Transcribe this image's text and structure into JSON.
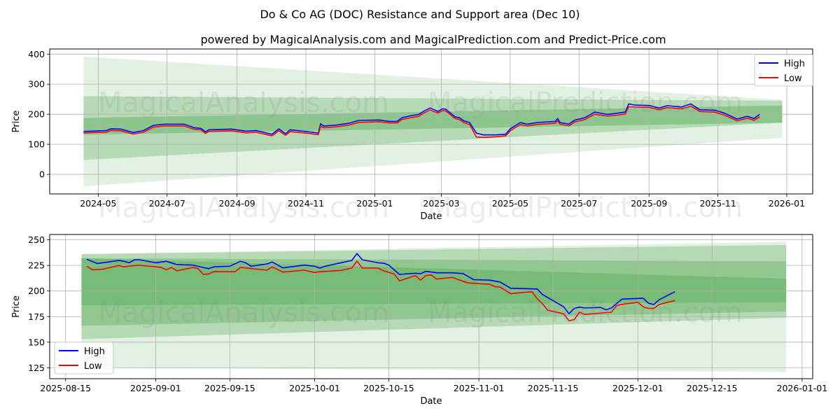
{
  "header": {
    "title": "Do & Co AG (DOC) Resistance and Support area (Dec 10)",
    "subtitle": "powered by MagicalAnalysis.com and MagicalPrediction.com and Predict-Price.com"
  },
  "watermarks": [
    "MagicalAnalysis.com",
    "MagicalPrediction.com"
  ],
  "colors": {
    "high": "#0000ff",
    "low": "#ff0000",
    "band": "#008000",
    "grid": "#b0b0b0"
  },
  "chart_data": [
    {
      "type": "line",
      "title": "",
      "xlabel": "Date",
      "ylabel": "Price",
      "xlim": [
        "2024-03-19",
        "2026-01-24"
      ],
      "ylim": [
        -65,
        417
      ],
      "grid": true,
      "legend": {
        "placement": "top-right",
        "entries": [
          "High",
          "Low"
        ]
      },
      "xticks": [
        {
          "date": "2024-05-01",
          "label": "2024-05"
        },
        {
          "date": "2024-07-01",
          "label": "2024-07"
        },
        {
          "date": "2024-09-01",
          "label": "2024-09"
        },
        {
          "date": "2024-11-01",
          "label": "2024-11"
        },
        {
          "date": "2025-01-01",
          "label": "2025-01"
        },
        {
          "date": "2025-03-01",
          "label": "2025-03"
        },
        {
          "date": "2025-05-01",
          "label": "2025-05"
        },
        {
          "date": "2025-07-01",
          "label": "2025-07"
        },
        {
          "date": "2025-09-01",
          "label": "2025-09"
        },
        {
          "date": "2025-11-01",
          "label": "2025-11"
        },
        {
          "date": "2026-01-01",
          "label": "2026-01"
        }
      ],
      "yticks": [
        {
          "value": 0,
          "label": "0"
        },
        {
          "value": 100,
          "label": "100"
        },
        {
          "value": 200,
          "label": "200"
        },
        {
          "value": 300,
          "label": "300"
        },
        {
          "value": 400,
          "label": "400"
        }
      ],
      "bands": [
        {
          "start": "2024-04-18",
          "end": "2025-12-28",
          "start_range": [
            -40,
            392
          ],
          "end_range": [
            122,
            248
          ],
          "opacity": 0.11
        },
        {
          "start": "2024-04-18",
          "end": "2025-12-28",
          "start_range": [
            48,
            260
          ],
          "end_range": [
            172,
            245
          ],
          "opacity": 0.2
        },
        {
          "start": "2024-04-18",
          "end": "2025-12-28",
          "start_range": [
            132,
            188
          ],
          "end_range": [
            172,
            229
          ],
          "opacity": 0.22
        }
      ],
      "dates": [
        "2024-04-18",
        "2024-05-08",
        "2024-05-12",
        "2024-05-21",
        "2024-06-01",
        "2024-06-10",
        "2024-06-19",
        "2024-06-28",
        "2024-07-16",
        "2024-07-25",
        "2024-07-31",
        "2024-08-04",
        "2024-08-07",
        "2024-08-27",
        "2024-09-09",
        "2024-09-18",
        "2024-10-02",
        "2024-10-08",
        "2024-10-14",
        "2024-10-18",
        "2024-11-04",
        "2024-11-12",
        "2024-11-14",
        "2024-11-17",
        "2024-11-28",
        "2024-12-09",
        "2024-12-18",
        "2025-01-05",
        "2025-01-14",
        "2025-01-21",
        "2025-01-25",
        "2025-02-03",
        "2025-02-09",
        "2025-02-14",
        "2025-02-19",
        "2025-02-26",
        "2025-03-02",
        "2025-03-05",
        "2025-03-13",
        "2025-03-17",
        "2025-03-21",
        "2025-03-26",
        "2025-04-01",
        "2025-04-07",
        "2025-04-18",
        "2025-04-27",
        "2025-05-01",
        "2025-05-10",
        "2025-05-16",
        "2025-05-25",
        "2025-06-10",
        "2025-06-12",
        "2025-06-14",
        "2025-06-22",
        "2025-06-27",
        "2025-07-06",
        "2025-07-15",
        "2025-07-26",
        "2025-08-04",
        "2025-08-11",
        "2025-08-14",
        "2025-08-19",
        "2025-09-01",
        "2025-09-10",
        "2025-09-17",
        "2025-09-30",
        "2025-10-08",
        "2025-10-16",
        "2025-10-29",
        "2025-11-07",
        "2025-11-18",
        "2025-11-27",
        "2025-12-03",
        "2025-12-08"
      ],
      "series": [
        {
          "name": "High",
          "values": [
            142.8,
            145.4,
            151.4,
            150.7,
            139.1,
            145.4,
            163.1,
            167,
            167,
            155.3,
            153,
            141.4,
            148.4,
            150.7,
            143.7,
            145.4,
            133.5,
            151.4,
            135.1,
            148.4,
            141.4,
            137.4,
            168.4,
            160.7,
            163.8,
            170,
            179.4,
            181,
            176.3,
            176.3,
            188,
            195.7,
            199.6,
            211.3,
            220.6,
            209.6,
            218.2,
            216.6,
            191.7,
            188,
            177.8,
            172.4,
            137.4,
            131.2,
            131.2,
            133.5,
            151.4,
            172.4,
            167,
            172.4,
            176.3,
            185.7,
            172.4,
            167,
            180.2,
            188,
            207.3,
            199.6,
            203.5,
            207.3,
            234.5,
            230.6,
            229,
            220.6,
            228.3,
            224.3,
            234.5,
            215,
            213.6,
            203.5,
            184,
            193.3,
            185.7,
            199.6
          ]
        },
        {
          "name": "Low",
          "values": [
            138,
            140,
            146,
            145,
            134,
            140,
            157,
            161,
            161,
            150,
            148,
            136,
            143,
            145,
            138,
            140,
            128,
            145,
            130,
            142,
            136,
            132,
            160,
            155,
            158,
            164,
            173,
            175,
            171,
            171,
            182,
            189,
            193,
            205,
            214,
            204,
            212,
            211,
            186,
            182,
            172,
            166,
            124,
            123,
            125,
            128,
            145,
            166,
            161,
            166,
            170,
            178,
            167,
            161,
            174,
            182,
            200,
            194,
            197,
            201,
            225,
            224,
            223,
            215,
            222,
            218,
            227,
            209,
            207,
            197,
            178,
            187,
            180,
            191
          ]
        }
      ]
    },
    {
      "type": "line",
      "title": "",
      "xlabel": "Date",
      "ylabel": "Price",
      "xlim": [
        "2025-08-12",
        "2026-01-03"
      ],
      "ylim": [
        114.3,
        255.2
      ],
      "grid": true,
      "legend": {
        "placement": "bottom-left",
        "entries": [
          "High",
          "Low"
        ]
      },
      "xticks": [
        {
          "date": "2025-08-15",
          "label": "2025-08-15"
        },
        {
          "date": "2025-09-01",
          "label": "2025-09-01"
        },
        {
          "date": "2025-09-15",
          "label": "2025-09-15"
        },
        {
          "date": "2025-10-01",
          "label": "2025-10-01"
        },
        {
          "date": "2025-10-15",
          "label": "2025-10-15"
        },
        {
          "date": "2025-11-01",
          "label": "2025-11-01"
        },
        {
          "date": "2025-11-15",
          "label": "2025-11-15"
        },
        {
          "date": "2025-12-01",
          "label": "2025-12-01"
        },
        {
          "date": "2025-12-15",
          "label": "2025-12-15"
        },
        {
          "date": "2026-01-01",
          "label": "2026-01-01"
        }
      ],
      "yticks": [
        {
          "value": 125,
          "label": "125"
        },
        {
          "value": 150,
          "label": "150"
        },
        {
          "value": 175,
          "label": "175"
        },
        {
          "value": 200,
          "label": "200"
        },
        {
          "value": 225,
          "label": "225"
        },
        {
          "value": 250,
          "label": "250"
        }
      ],
      "bands": [
        {
          "start": "2025-08-18",
          "end": "2025-12-29",
          "start_range": [
            125,
            236
          ],
          "end_range": [
            121,
            248
          ],
          "opacity": 0.11
        },
        {
          "start": "2025-08-18",
          "end": "2025-12-29",
          "start_range": [
            153,
            236
          ],
          "end_range": [
            174,
            245
          ],
          "opacity": 0.2
        },
        {
          "start": "2025-08-18",
          "end": "2025-12-29",
          "start_range": [
            166,
            232
          ],
          "end_range": [
            180,
            229
          ],
          "opacity": 0.2
        },
        {
          "start": "2025-08-18",
          "end": "2025-12-29",
          "start_range": [
            186,
            232
          ],
          "end_range": [
            189,
            212
          ],
          "opacity": 0.18
        }
      ],
      "series": [
        {
          "name": "High",
          "points": [
            [
              "2025-08-19",
              231.0
            ],
            [
              "2025-08-21",
              226.9
            ],
            [
              "2025-08-23",
              228.3
            ],
            [
              "2025-08-25",
              229.8
            ],
            [
              "2025-08-26",
              229.1
            ],
            [
              "2025-08-27",
              227.6
            ],
            [
              "2025-08-28",
              230.5
            ],
            [
              "2025-08-29",
              230.5
            ],
            [
              "2025-09-01",
              227.6
            ],
            [
              "2025-09-03",
              229.1
            ],
            [
              "2025-09-05",
              225.8
            ],
            [
              "2025-09-08",
              225.3
            ],
            [
              "2025-09-10",
              223.0
            ],
            [
              "2025-09-11",
              221.8
            ],
            [
              "2025-09-12",
              223.7
            ],
            [
              "2025-09-15",
              224.2
            ],
            [
              "2025-09-17",
              229.1
            ],
            [
              "2025-09-18",
              227.6
            ],
            [
              "2025-09-19",
              224.2
            ],
            [
              "2025-09-22",
              226.4
            ],
            [
              "2025-09-23",
              228.3
            ],
            [
              "2025-09-25",
              222.6
            ],
            [
              "2025-09-29",
              225.3
            ],
            [
              "2025-10-01",
              224.2
            ],
            [
              "2025-10-02",
              222.4
            ],
            [
              "2025-10-03",
              224.2
            ],
            [
              "2025-10-07",
              228.7
            ],
            [
              "2025-10-08",
              229.8
            ],
            [
              "2025-10-09",
              236.6
            ],
            [
              "2025-10-10",
              230.5
            ],
            [
              "2025-10-13",
              227.6
            ],
            [
              "2025-10-14",
              227.2
            ],
            [
              "2025-10-15",
              225.3
            ],
            [
              "2025-10-17",
              216.2
            ],
            [
              "2025-10-20",
              217.4
            ],
            [
              "2025-10-21",
              216.9
            ],
            [
              "2025-10-22",
              219.2
            ],
            [
              "2025-10-24",
              217.8
            ],
            [
              "2025-10-27",
              217.8
            ],
            [
              "2025-10-29",
              217.0
            ],
            [
              "2025-10-31",
              211.1
            ],
            [
              "2025-11-03",
              210.6
            ],
            [
              "2025-11-05",
              208.8
            ],
            [
              "2025-11-07",
              202.7
            ],
            [
              "2025-11-12",
              202.0
            ],
            [
              "2025-11-13",
              196.6
            ],
            [
              "2025-11-17",
              184.6
            ],
            [
              "2025-11-18",
              177.8
            ],
            [
              "2025-11-19",
              183.0
            ],
            [
              "2025-11-20",
              184.3
            ],
            [
              "2025-11-21",
              183.4
            ],
            [
              "2025-11-24",
              183.9
            ],
            [
              "2025-11-25",
              181.6
            ],
            [
              "2025-11-26",
              183.4
            ],
            [
              "2025-11-28",
              192.1
            ],
            [
              "2025-12-02",
              192.9
            ],
            [
              "2025-12-03",
              188.0
            ],
            [
              "2025-12-04",
              186.8
            ],
            [
              "2025-12-05",
              191.4
            ],
            [
              "2025-12-08",
              199.3
            ]
          ]
        },
        {
          "name": "Low",
          "points": [
            [
              "2025-08-19",
              224.2
            ],
            [
              "2025-08-20",
              220.8
            ],
            [
              "2025-08-22",
              221.2
            ],
            [
              "2025-08-25",
              224.9
            ],
            [
              "2025-08-26",
              223.7
            ],
            [
              "2025-08-28",
              224.9
            ],
            [
              "2025-08-29",
              225.1
            ],
            [
              "2025-09-01",
              223.7
            ],
            [
              "2025-09-02",
              223.0
            ],
            [
              "2025-09-03",
              220.8
            ],
            [
              "2025-09-04",
              223.0
            ],
            [
              "2025-09-05",
              219.7
            ],
            [
              "2025-09-08",
              223.0
            ],
            [
              "2025-09-09",
              221.9
            ],
            [
              "2025-09-10",
              216.3
            ],
            [
              "2025-09-11",
              216.7
            ],
            [
              "2025-09-12",
              219.0
            ],
            [
              "2025-09-16",
              218.8
            ],
            [
              "2025-09-17",
              223.0
            ],
            [
              "2025-09-22",
              220.3
            ],
            [
              "2025-09-23",
              223.5
            ],
            [
              "2025-09-25",
              218.5
            ],
            [
              "2025-09-29",
              220.3
            ],
            [
              "2025-10-01",
              218.1
            ],
            [
              "2025-10-02",
              218.8
            ],
            [
              "2025-10-06",
              220.1
            ],
            [
              "2025-10-08",
              222.4
            ],
            [
              "2025-10-09",
              229.2
            ],
            [
              "2025-10-10",
              222.4
            ],
            [
              "2025-10-13",
              222.4
            ],
            [
              "2025-10-14",
              219.7
            ],
            [
              "2025-10-16",
              216.7
            ],
            [
              "2025-10-17",
              209.9
            ],
            [
              "2025-10-20",
              215.1
            ],
            [
              "2025-10-21",
              210.6
            ],
            [
              "2025-10-22",
              215.1
            ],
            [
              "2025-10-23",
              215.6
            ],
            [
              "2025-10-24",
              211.7
            ],
            [
              "2025-10-27",
              213.3
            ],
            [
              "2025-10-29",
              209.5
            ],
            [
              "2025-10-30",
              207.9
            ],
            [
              "2025-11-03",
              206.5
            ],
            [
              "2025-11-04",
              204.3
            ],
            [
              "2025-11-05",
              203.8
            ],
            [
              "2025-11-07",
              197.5
            ],
            [
              "2025-11-11",
              199.3
            ],
            [
              "2025-11-12",
              192.5
            ],
            [
              "2025-11-13",
              187.5
            ],
            [
              "2025-11-14",
              181.2
            ],
            [
              "2025-11-17",
              177.8
            ],
            [
              "2025-11-18",
              171.0
            ],
            [
              "2025-11-19",
              172.1
            ],
            [
              "2025-11-20",
              179.3
            ],
            [
              "2025-11-21",
              177.1
            ],
            [
              "2025-11-26",
              179.3
            ],
            [
              "2025-11-27",
              185.7
            ],
            [
              "2025-11-28",
              187.0
            ],
            [
              "2025-12-01",
              188.9
            ],
            [
              "2025-12-02",
              184.6
            ],
            [
              "2025-12-03",
              183.0
            ],
            [
              "2025-12-04",
              183.0
            ],
            [
              "2025-12-05",
              186.8
            ],
            [
              "2025-12-08",
              190.7
            ]
          ]
        }
      ]
    }
  ]
}
